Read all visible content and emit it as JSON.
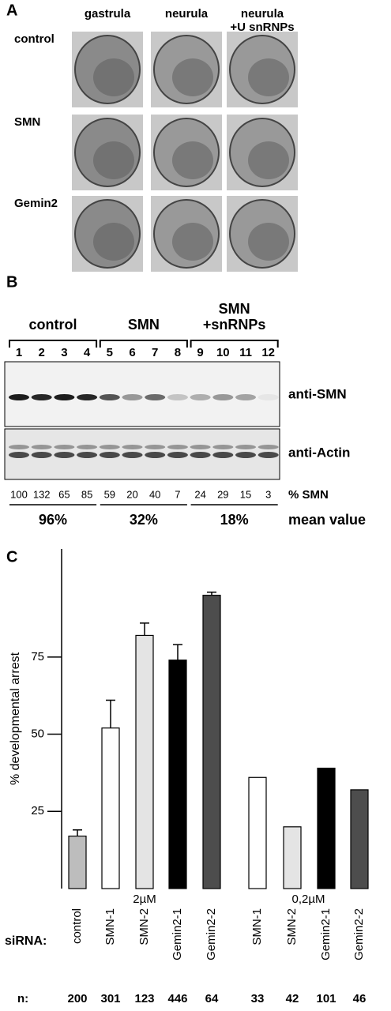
{
  "panel_a": {
    "label": "A",
    "columns": [
      [
        "gastrula"
      ],
      [
        "neurula"
      ],
      [
        "neurula",
        "+U snRNPs"
      ]
    ],
    "rows": [
      "control",
      "SMN",
      "Gemin2"
    ]
  },
  "panel_b": {
    "label": "B",
    "groups": [
      [
        "control"
      ],
      [
        "SMN"
      ],
      [
        "SMN",
        "+snRNPs"
      ]
    ],
    "lanes": [
      "1",
      "2",
      "3",
      "4",
      "5",
      "6",
      "7",
      "8",
      "9",
      "10",
      "11",
      "12"
    ],
    "blots": [
      "anti-SMN",
      "anti-Actin"
    ],
    "percent_label": "% SMN",
    "percents": [
      "100",
      "132",
      "65",
      "85",
      "59",
      "20",
      "40",
      "7",
      "24",
      "29",
      "15",
      "3"
    ],
    "means": [
      "96%",
      "32%",
      "18%"
    ],
    "mean_label": "mean value"
  },
  "chart_data": {
    "type": "bar",
    "panel_label": "C",
    "ylabel": "% developmental arrest",
    "ylim": [
      0,
      110
    ],
    "yticks": [
      25,
      50,
      75
    ],
    "categories": [
      "control",
      "SMN-1",
      "SMN-2",
      "Gemin2-1",
      "Gemin2-2",
      "SMN-1",
      "SMN-2",
      "Gemin2-1",
      "Gemin2-2"
    ],
    "values": [
      17,
      52,
      82,
      74,
      95,
      36,
      20,
      39,
      32
    ],
    "errors": [
      2,
      9,
      4,
      5,
      1,
      null,
      null,
      null,
      null
    ],
    "colors": [
      "#bdbdbd",
      "#ffffff",
      "#e4e4e4",
      "#000000",
      "#4d4d4d",
      "#ffffff",
      "#e4e4e4",
      "#000000",
      "#4d4d4d"
    ],
    "groups": [
      "2µM",
      "0,2µM"
    ],
    "xlabel": "siRNA:",
    "n_label": "n:",
    "n": [
      "200",
      "301",
      "123",
      "446",
      "64",
      "33",
      "42",
      "101",
      "46"
    ]
  }
}
